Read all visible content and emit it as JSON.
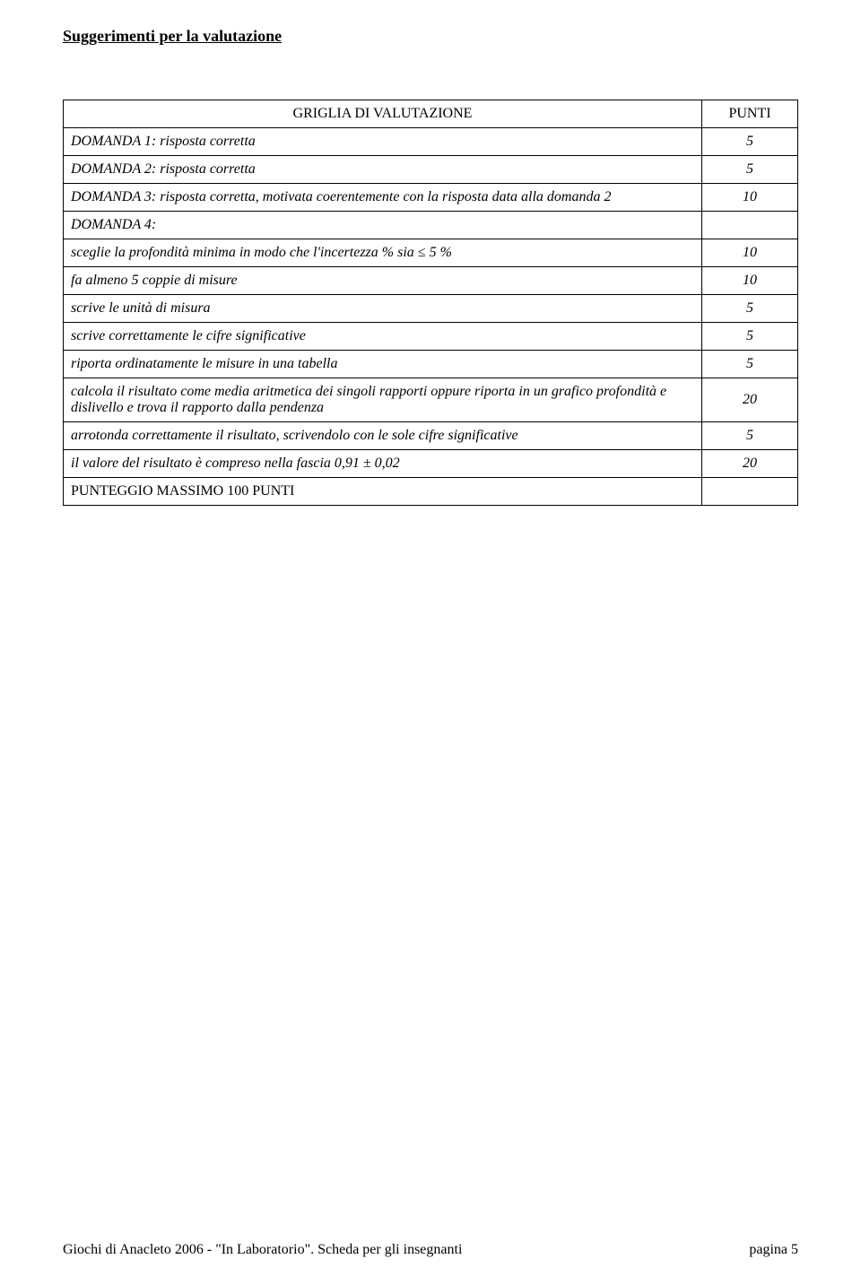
{
  "title": "Suggerimenti per la valutazione",
  "table": {
    "header": {
      "label": "GRIGLIA DI VALUTAZIONE",
      "points": "PUNTI"
    },
    "rows": [
      {
        "label": "DOMANDA 1: risposta corretta",
        "points": "5",
        "italic": true
      },
      {
        "label": "DOMANDA 2: risposta corretta",
        "points": "5",
        "italic": true
      },
      {
        "label": "DOMANDA 3: risposta corretta, motivata coerentemente con la risposta data alla domanda 2",
        "points": "10",
        "italic": true
      },
      {
        "label": "DOMANDA 4:",
        "points": "",
        "italic": true
      },
      {
        "label": "sceglie la profondità minima in modo che l'incertezza % sia ≤ 5 %",
        "points": "10",
        "italic": true
      },
      {
        "label": "fa almeno 5 coppie di misure",
        "points": "10",
        "italic": true
      },
      {
        "label": "scrive le unità di misura",
        "points": "5",
        "italic": true
      },
      {
        "label": "scrive correttamente le cifre significative",
        "points": "5",
        "italic": true
      },
      {
        "label": "riporta ordinatamente le misure in una tabella",
        "points": "5",
        "italic": true
      },
      {
        "label": "calcola il risultato come media aritmetica dei singoli rapporti oppure riporta in un grafico profondità e dislivello e trova il rapporto dalla pendenza",
        "points": "20",
        "italic": true
      },
      {
        "label": "arrotonda correttamente il risultato, scrivendolo con le sole cifre significative",
        "points": "5",
        "italic": true
      },
      {
        "label": "il valore del risultato è compreso nella fascia 0,91 ± 0,02",
        "points": "20",
        "italic": true
      },
      {
        "label": "PUNTEGGIO MASSIMO 100 PUNTI",
        "points": "",
        "italic": false
      }
    ]
  },
  "footer": {
    "left": "Giochi di Anacleto 2006 - \"In Laboratorio\". Scheda per gli insegnanti",
    "right": "pagina 5"
  },
  "colors": {
    "background": "#ffffff",
    "text": "#000000",
    "border": "#000000"
  }
}
